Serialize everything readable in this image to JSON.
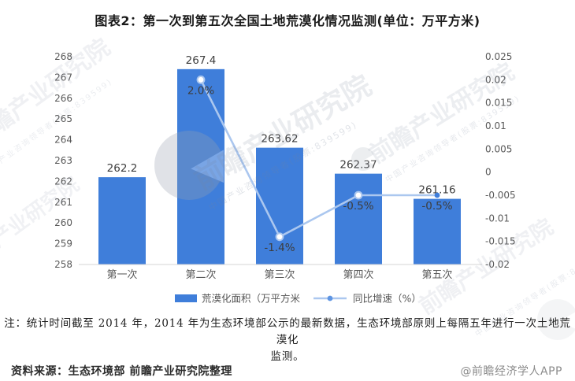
{
  "title": "图表2：第一次到第五次全国土地荒漠化情况监测(单位：万平方米)",
  "chart_data": {
    "type": "bar+line",
    "categories": [
      "第一次",
      "第二次",
      "第三次",
      "第四次",
      "第五次"
    ],
    "series": [
      {
        "name": "荒漠化面积（万平方米",
        "type": "bar",
        "axis": "left",
        "color": "#3F7EDA",
        "values": [
          262.2,
          267.4,
          263.62,
          262.37,
          261.16
        ],
        "labels": [
          "262.2",
          "267.4",
          "263.62",
          "262.37",
          "261.16"
        ]
      },
      {
        "name": "同比增速（%）",
        "type": "line",
        "axis": "right",
        "color": "#ABC7EF",
        "marker_fill": "#ffffff",
        "emphasis_color": "#3F7EDA",
        "values": [
          null,
          0.02,
          -0.014,
          -0.005,
          -0.005
        ],
        "labels": [
          null,
          "2.0%",
          "-1.4%",
          "-0.5%",
          "-0.5%"
        ]
      }
    ],
    "left_axis": {
      "min": 258,
      "max": 268,
      "step": 1,
      "ticks": [
        "268",
        "267",
        "266",
        "265",
        "264",
        "263",
        "262",
        "261",
        "260",
        "259",
        "258"
      ]
    },
    "right_axis": {
      "min": -0.02,
      "max": 0.025,
      "step": 0.005,
      "ticks": [
        "0.025",
        "0.02",
        "0.015",
        "0.01",
        "0.005",
        "0",
        "-0.005",
        "-0.01",
        "-0.015",
        "-0.02"
      ]
    },
    "grid": false,
    "legend_position": "bottom-center"
  },
  "note": {
    "line1": "注：统计时间截至 2014 年，2014 年为生态环境部公示的最新数据，生态环境部原则上每隔五年进行一次土地荒漠化",
    "line2": "监测。"
  },
  "footer": {
    "source": "资料来源：生态环境部 前瞻产业研究院整理",
    "credit": "@前瞻经济学人APP"
  },
  "watermark": {
    "brand": "前瞻产业研究院",
    "slogan": "中国产业咨询领导者(股票:839599)"
  },
  "colors": {
    "bar": "#3F7EDA",
    "line": "#ABC7EF",
    "axis_line": "#d4d4d4",
    "tick_text": "#595959",
    "data_label": "#3d3d3d"
  }
}
